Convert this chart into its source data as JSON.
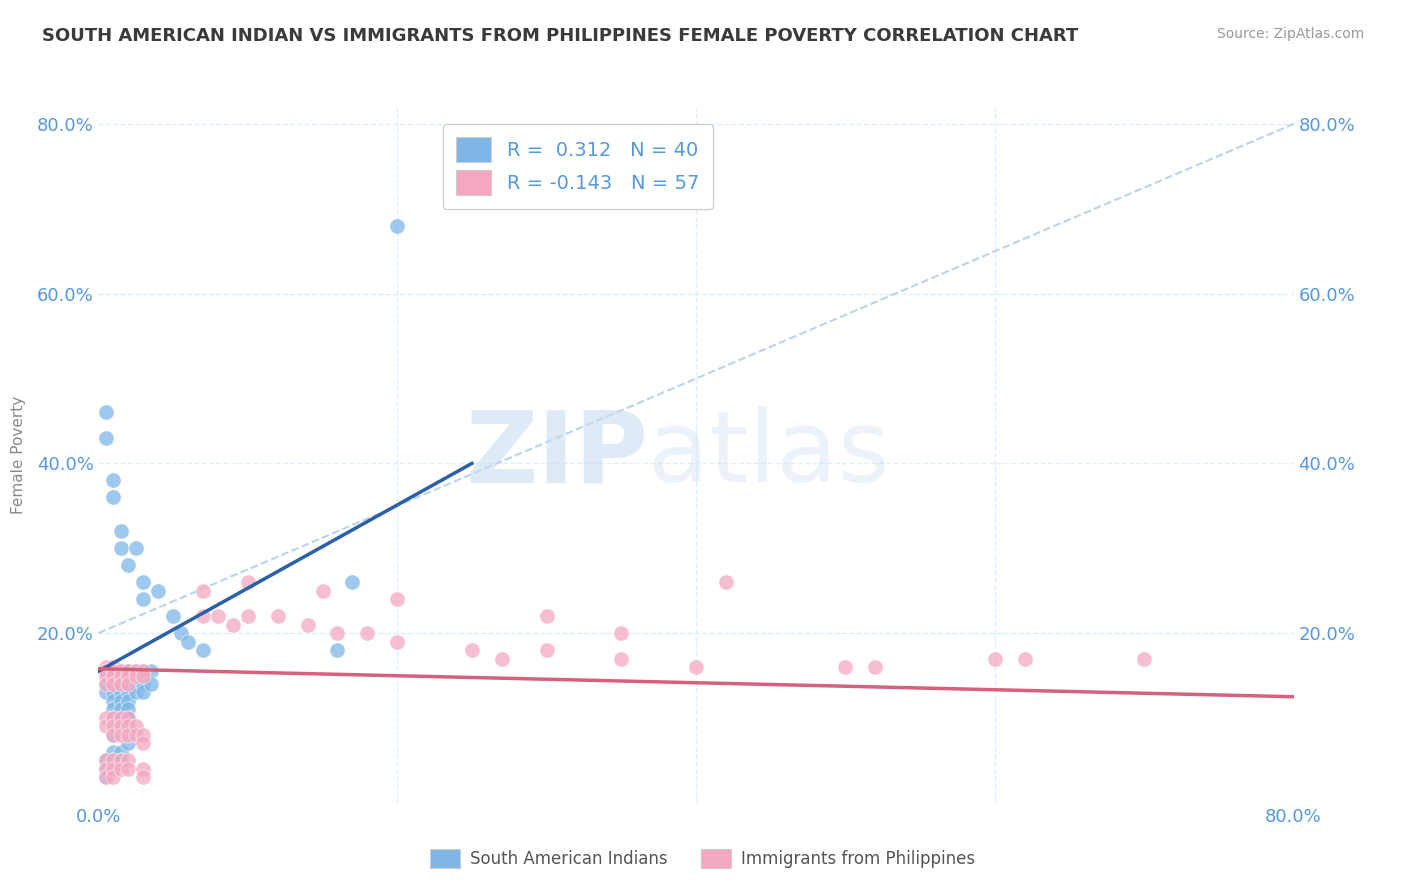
{
  "title": "SOUTH AMERICAN INDIAN VS IMMIGRANTS FROM PHILIPPINES FEMALE POVERTY CORRELATION CHART",
  "source": "Source: ZipAtlas.com",
  "ylabel": "Female Poverty",
  "xlim": [
    0.0,
    0.8
  ],
  "ylim": [
    0.0,
    0.82
  ],
  "blue_color": "#7EB6E8",
  "pink_color": "#F4A8C0",
  "blue_line_color": "#2B5FA8",
  "pink_line_color": "#D9607A",
  "dashed_line_color": "#B8D4EE",
  "grid_color": "#DDEEFF",
  "background_color": "#FFFFFF",
  "title_color": "#3A3A3A",
  "axis_color": "#5599DD",
  "watermark_color1": "#C8DCF0",
  "watermark_color2": "#C8DCF0",
  "blue_scatter": [
    [
      0.005,
      0.155
    ],
    [
      0.005,
      0.155
    ],
    [
      0.005,
      0.14
    ],
    [
      0.005,
      0.13
    ],
    [
      0.01,
      0.155
    ],
    [
      0.01,
      0.14
    ],
    [
      0.01,
      0.13
    ],
    [
      0.01,
      0.12
    ],
    [
      0.01,
      0.11
    ],
    [
      0.01,
      0.1
    ],
    [
      0.01,
      0.09
    ],
    [
      0.01,
      0.08
    ],
    [
      0.015,
      0.155
    ],
    [
      0.015,
      0.14
    ],
    [
      0.015,
      0.13
    ],
    [
      0.015,
      0.12
    ],
    [
      0.015,
      0.11
    ],
    [
      0.015,
      0.1
    ],
    [
      0.02,
      0.155
    ],
    [
      0.02,
      0.14
    ],
    [
      0.02,
      0.13
    ],
    [
      0.02,
      0.12
    ],
    [
      0.02,
      0.11
    ],
    [
      0.02,
      0.1
    ],
    [
      0.02,
      0.09
    ],
    [
      0.025,
      0.155
    ],
    [
      0.025,
      0.14
    ],
    [
      0.025,
      0.13
    ],
    [
      0.03,
      0.155
    ],
    [
      0.03,
      0.14
    ],
    [
      0.03,
      0.13
    ],
    [
      0.035,
      0.155
    ],
    [
      0.035,
      0.14
    ],
    [
      0.005,
      0.05
    ],
    [
      0.005,
      0.04
    ],
    [
      0.005,
      0.03
    ],
    [
      0.01,
      0.06
    ],
    [
      0.01,
      0.05
    ],
    [
      0.01,
      0.04
    ],
    [
      0.015,
      0.06
    ],
    [
      0.015,
      0.05
    ],
    [
      0.02,
      0.07
    ],
    [
      0.005,
      0.46
    ],
    [
      0.005,
      0.43
    ],
    [
      0.01,
      0.38
    ],
    [
      0.01,
      0.36
    ],
    [
      0.015,
      0.32
    ],
    [
      0.015,
      0.3
    ],
    [
      0.02,
      0.28
    ],
    [
      0.025,
      0.3
    ],
    [
      0.03,
      0.26
    ],
    [
      0.03,
      0.24
    ],
    [
      0.04,
      0.25
    ],
    [
      0.05,
      0.22
    ],
    [
      0.055,
      0.2
    ],
    [
      0.06,
      0.19
    ],
    [
      0.07,
      0.18
    ],
    [
      0.16,
      0.18
    ],
    [
      0.17,
      0.26
    ],
    [
      0.2,
      0.68
    ]
  ],
  "pink_scatter": [
    [
      0.005,
      0.16
    ],
    [
      0.005,
      0.155
    ],
    [
      0.005,
      0.15
    ],
    [
      0.005,
      0.14
    ],
    [
      0.01,
      0.16
    ],
    [
      0.01,
      0.155
    ],
    [
      0.01,
      0.15
    ],
    [
      0.01,
      0.14
    ],
    [
      0.015,
      0.155
    ],
    [
      0.015,
      0.15
    ],
    [
      0.015,
      0.14
    ],
    [
      0.02,
      0.155
    ],
    [
      0.02,
      0.15
    ],
    [
      0.02,
      0.14
    ],
    [
      0.025,
      0.155
    ],
    [
      0.025,
      0.15
    ],
    [
      0.03,
      0.155
    ],
    [
      0.03,
      0.15
    ],
    [
      0.005,
      0.1
    ],
    [
      0.005,
      0.09
    ],
    [
      0.01,
      0.1
    ],
    [
      0.01,
      0.09
    ],
    [
      0.01,
      0.08
    ],
    [
      0.015,
      0.1
    ],
    [
      0.015,
      0.09
    ],
    [
      0.015,
      0.08
    ],
    [
      0.02,
      0.1
    ],
    [
      0.02,
      0.09
    ],
    [
      0.02,
      0.08
    ],
    [
      0.025,
      0.09
    ],
    [
      0.025,
      0.08
    ],
    [
      0.03,
      0.08
    ],
    [
      0.03,
      0.07
    ],
    [
      0.005,
      0.05
    ],
    [
      0.005,
      0.04
    ],
    [
      0.005,
      0.03
    ],
    [
      0.01,
      0.05
    ],
    [
      0.01,
      0.04
    ],
    [
      0.01,
      0.03
    ],
    [
      0.015,
      0.05
    ],
    [
      0.015,
      0.04
    ],
    [
      0.02,
      0.05
    ],
    [
      0.02,
      0.04
    ],
    [
      0.03,
      0.04
    ],
    [
      0.03,
      0.03
    ],
    [
      0.07,
      0.22
    ],
    [
      0.08,
      0.22
    ],
    [
      0.09,
      0.21
    ],
    [
      0.1,
      0.22
    ],
    [
      0.12,
      0.22
    ],
    [
      0.14,
      0.21
    ],
    [
      0.16,
      0.2
    ],
    [
      0.18,
      0.2
    ],
    [
      0.2,
      0.19
    ],
    [
      0.25,
      0.18
    ],
    [
      0.27,
      0.17
    ],
    [
      0.3,
      0.18
    ],
    [
      0.35,
      0.17
    ],
    [
      0.4,
      0.16
    ],
    [
      0.42,
      0.26
    ],
    [
      0.5,
      0.16
    ],
    [
      0.52,
      0.16
    ],
    [
      0.6,
      0.17
    ],
    [
      0.62,
      0.17
    ],
    [
      0.7,
      0.17
    ],
    [
      0.07,
      0.25
    ],
    [
      0.1,
      0.26
    ],
    [
      0.15,
      0.25
    ],
    [
      0.2,
      0.24
    ],
    [
      0.3,
      0.22
    ],
    [
      0.35,
      0.2
    ]
  ],
  "blue_line_x": [
    0.0,
    0.25
  ],
  "blue_line_y": [
    0.155,
    0.4
  ],
  "pink_line_x": [
    0.0,
    0.8
  ],
  "pink_line_y": [
    0.158,
    0.125
  ],
  "dashed_line_x": [
    0.0,
    0.8
  ],
  "dashed_line_y": [
    0.2,
    0.8
  ]
}
